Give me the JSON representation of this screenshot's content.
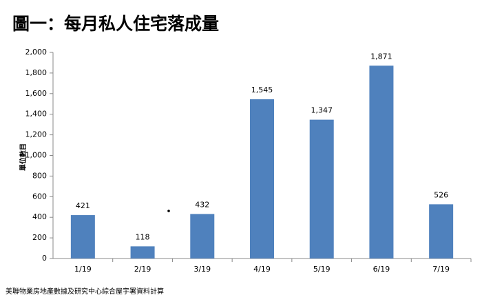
{
  "chart_data": {
    "type": "bar",
    "title": "圖一：每月私人住宅落成量",
    "y_label": "單位數目",
    "source": "美聯物業房地產數據及研究中心綜合屋宇署資料計算",
    "categories": [
      "1/19",
      "2/19",
      "3/19",
      "4/19",
      "5/19",
      "6/19",
      "7/19"
    ],
    "values": [
      421,
      118,
      432,
      1545,
      1347,
      1871,
      526
    ],
    "value_labels": [
      "421",
      "118",
      "432",
      "1,545",
      "1,347",
      "1,871",
      "526"
    ],
    "color": "#4f81bd",
    "ylim": [
      0,
      2000
    ],
    "yticks": [
      0,
      200,
      400,
      600,
      800,
      {
        "value": 1000,
        "label": "1,000"
      },
      {
        "value": 1200,
        "label": "1,200"
      },
      {
        "value": 1400,
        "label": "1,400"
      },
      {
        "value": 1600,
        "label": "1,600"
      },
      {
        "value": 1800,
        "label": "1,800"
      },
      {
        "value": 2000,
        "label": "2,000"
      }
    ],
    "grid": false
  }
}
